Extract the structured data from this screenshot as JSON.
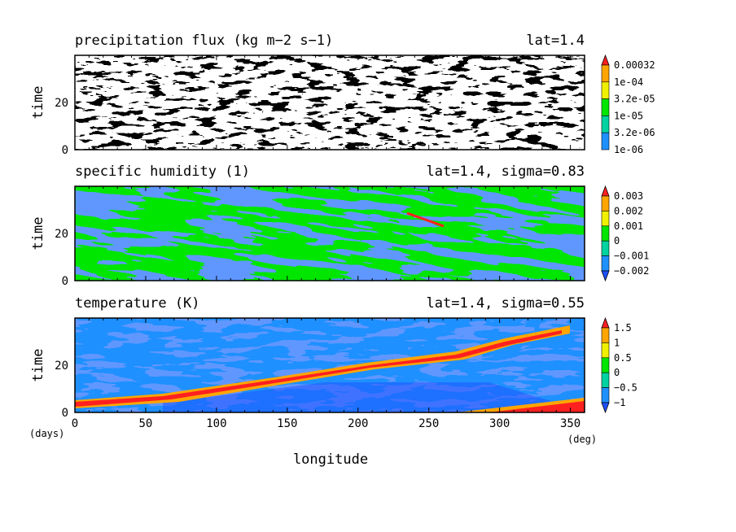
{
  "chart_data": [
    {
      "type": "heatmap",
      "title": "precipitation flux (kg m−2 s−1)",
      "subtitle": "lat=1.4",
      "ylabel": "time",
      "xlim": [
        0,
        360
      ],
      "ylim": [
        0,
        40
      ],
      "yticks": [
        "0",
        "20"
      ],
      "colorbar": {
        "labels": [
          "1e-06",
          "3.2e-06",
          "1e-05",
          "3.2e-05",
          "1e-04",
          "0.00032"
        ],
        "colors": [
          "#1e90ff",
          "#00d2a0",
          "#00e600",
          "#f0f000",
          "#ffa500",
          "#ff2020"
        ],
        "extends": "max",
        "below_min": "white"
      }
    },
    {
      "type": "heatmap",
      "title": "specific humidity (1)",
      "subtitle": "lat=1.4, sigma=0.83",
      "ylabel": "time",
      "xlim": [
        0,
        360
      ],
      "ylim": [
        0,
        40
      ],
      "yticks": [
        "0",
        "20"
      ],
      "colorbar": {
        "labels": [
          "−0.002",
          "−0.001",
          "0",
          "0.001",
          "0.002",
          "0.003"
        ],
        "colors": [
          "#1e50ff",
          "#1e90ff",
          "#00d2a0",
          "#00e600",
          "#f0f000",
          "#ffa500",
          "#ff2020"
        ],
        "extends": "both"
      }
    },
    {
      "type": "heatmap",
      "title": "temperature (K)",
      "subtitle": "lat=1.4, sigma=0.55",
      "ylabel": "time",
      "xlabel": "longitude",
      "xlim": [
        0,
        360
      ],
      "ylim": [
        0,
        40
      ],
      "yticks": [
        "0",
        "20"
      ],
      "colorbar": {
        "labels": [
          "−1",
          "−0.5",
          "0",
          "0.5",
          "1",
          "1.5"
        ],
        "colors": [
          "#1e50ff",
          "#1e90ff",
          "#00d2a0",
          "#00e600",
          "#f0f000",
          "#ffa500",
          "#ff2020"
        ],
        "extends": "both"
      }
    }
  ],
  "xaxis": {
    "ticks": [
      "0",
      "50",
      "100",
      "150",
      "200",
      "250",
      "300",
      "350"
    ],
    "tick_values": [
      0,
      50,
      100,
      150,
      200,
      250,
      300,
      350
    ],
    "left_unit": "(days)",
    "right_unit": "(deg)",
    "label": "longitude"
  }
}
